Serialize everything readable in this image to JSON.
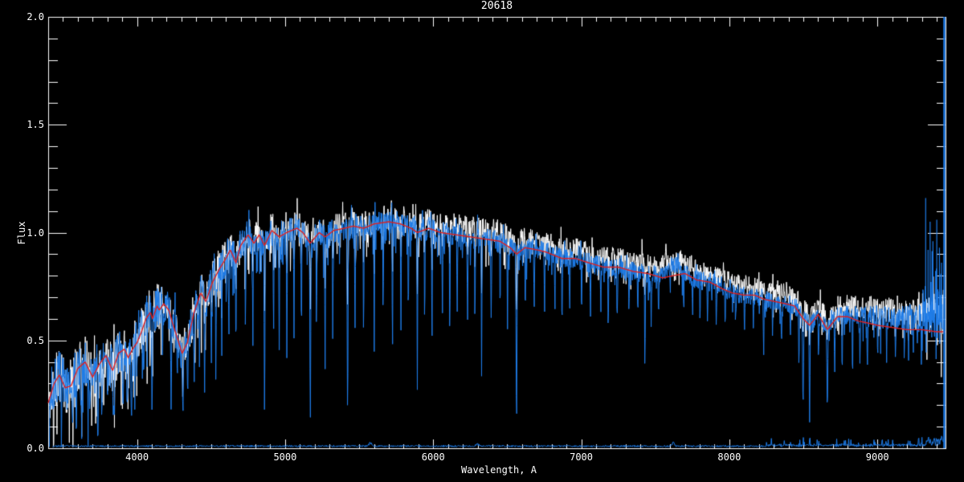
{
  "figure": {
    "background": "#000000"
  },
  "chart_data": {
    "type": "line",
    "title": "20618",
    "xlabel": "Wavelength, A",
    "ylabel": "Flux",
    "xlim": [
      3400,
      9460
    ],
    "ylim": [
      0.0,
      2.0
    ],
    "grid": false,
    "legend": null,
    "axis_color": "#ffffff",
    "x_ticks": [
      {
        "value": 4000,
        "label": "4000"
      },
      {
        "value": 5000,
        "label": "5000"
      },
      {
        "value": 6000,
        "label": "6000"
      },
      {
        "value": 7000,
        "label": "7000"
      },
      {
        "value": 8000,
        "label": "8000"
      },
      {
        "value": 9000,
        "label": "9000"
      }
    ],
    "x_minor_step": 100,
    "y_ticks": [
      {
        "value": 0.0,
        "label": "0.0"
      },
      {
        "value": 0.5,
        "label": "0.5"
      },
      {
        "value": 1.0,
        "label": "1.0"
      },
      {
        "value": 1.5,
        "label": "1.5"
      },
      {
        "value": 2.0,
        "label": "2.0"
      }
    ],
    "y_minor_step": 0.1,
    "series": [
      {
        "name": "observed-spectrum-white",
        "color": "#ffffff",
        "role": "noisy",
        "seed": 11,
        "offset_anchors": [
          [
            3400,
            0.005
          ],
          [
            5000,
            0.01
          ],
          [
            5600,
            0.015
          ],
          [
            6300,
            0.045
          ],
          [
            7600,
            0.05
          ],
          [
            8700,
            0.05
          ],
          [
            9000,
            0.08
          ],
          [
            9460,
            0.09
          ]
        ],
        "down_spike_p": 0.16,
        "line_strength": 0.6,
        "bump_scale": 0.6,
        "noise_scale": 1.05,
        "red_end_boost": false
      },
      {
        "name": "calibrated-spectrum-blue",
        "color": "#1e7ce8",
        "role": "noisy",
        "seed": 7,
        "offset_anchors": [
          [
            3400,
            0
          ],
          [
            8700,
            0
          ],
          [
            9000,
            0.04
          ],
          [
            9460,
            0.06
          ]
        ],
        "down_spike_p": 0.1,
        "line_strength": 1.0,
        "bump_scale": 1.0,
        "noise_scale": 1.0,
        "red_end_boost": true
      },
      {
        "name": "error-spectrum-blue",
        "color": "#1e7ce8",
        "role": "error",
        "seed": 23,
        "base_level": 0.01
      },
      {
        "name": "model-fit-red",
        "color": "#e02020",
        "role": "model",
        "line_width": 1.4
      }
    ],
    "continuum_anchors": [
      [
        3400,
        0.21
      ],
      [
        3440,
        0.3
      ],
      [
        3475,
        0.34
      ],
      [
        3515,
        0.28
      ],
      [
        3555,
        0.29
      ],
      [
        3600,
        0.37
      ],
      [
        3650,
        0.4
      ],
      [
        3700,
        0.33
      ],
      [
        3745,
        0.39
      ],
      [
        3790,
        0.43
      ],
      [
        3835,
        0.36
      ],
      [
        3875,
        0.44
      ],
      [
        3915,
        0.46
      ],
      [
        3940,
        0.42
      ],
      [
        3970,
        0.46
      ],
      [
        4000,
        0.49
      ],
      [
        4030,
        0.54
      ],
      [
        4060,
        0.6
      ],
      [
        4090,
        0.63
      ],
      [
        4105,
        0.6
      ],
      [
        4135,
        0.66
      ],
      [
        4150,
        0.64
      ],
      [
        4180,
        0.67
      ],
      [
        4215,
        0.64
      ],
      [
        4240,
        0.58
      ],
      [
        4305,
        0.44
      ],
      [
        4340,
        0.49
      ],
      [
        4385,
        0.63
      ],
      [
        4430,
        0.72
      ],
      [
        4465,
        0.68
      ],
      [
        4510,
        0.77
      ],
      [
        4555,
        0.83
      ],
      [
        4600,
        0.88
      ],
      [
        4630,
        0.92
      ],
      [
        4668,
        0.86
      ],
      [
        4700,
        0.94
      ],
      [
        4750,
        0.99
      ],
      [
        4790,
        0.95
      ],
      [
        4825,
        0.99
      ],
      [
        4861,
        0.94
      ],
      [
        4910,
        1.01
      ],
      [
        4960,
        0.98
      ],
      [
        5010,
        1.0
      ],
      [
        5080,
        1.02
      ],
      [
        5120,
        1.0
      ],
      [
        5170,
        0.95
      ],
      [
        5230,
        1.0
      ],
      [
        5270,
        0.98
      ],
      [
        5330,
        1.01
      ],
      [
        5400,
        1.02
      ],
      [
        5460,
        1.03
      ],
      [
        5530,
        1.02
      ],
      [
        5600,
        1.04
      ],
      [
        5700,
        1.05
      ],
      [
        5780,
        1.04
      ],
      [
        5850,
        1.02
      ],
      [
        5893,
        1.0
      ],
      [
        5970,
        1.02
      ],
      [
        6050,
        1.0
      ],
      [
        6150,
        0.99
      ],
      [
        6250,
        0.98
      ],
      [
        6350,
        0.97
      ],
      [
        6450,
        0.96
      ],
      [
        6520,
        0.93
      ],
      [
        6563,
        0.9
      ],
      [
        6620,
        0.93
      ],
      [
        6700,
        0.92
      ],
      [
        6760,
        0.91
      ],
      [
        6870,
        0.88
      ],
      [
        6960,
        0.88
      ],
      [
        7050,
        0.86
      ],
      [
        7150,
        0.84
      ],
      [
        7250,
        0.84
      ],
      [
        7350,
        0.82
      ],
      [
        7450,
        0.81
      ],
      [
        7550,
        0.79
      ],
      [
        7620,
        0.8
      ],
      [
        7700,
        0.81
      ],
      [
        7780,
        0.78
      ],
      [
        7870,
        0.77
      ],
      [
        7950,
        0.74
      ],
      [
        8020,
        0.72
      ],
      [
        8100,
        0.71
      ],
      [
        8170,
        0.71
      ],
      [
        8240,
        0.69
      ],
      [
        8310,
        0.68
      ],
      [
        8380,
        0.67
      ],
      [
        8440,
        0.66
      ],
      [
        8500,
        0.6
      ],
      [
        8542,
        0.57
      ],
      [
        8600,
        0.62
      ],
      [
        8662,
        0.55
      ],
      [
        8730,
        0.61
      ],
      [
        8800,
        0.61
      ],
      [
        8870,
        0.59
      ],
      [
        8940,
        0.58
      ],
      [
        9000,
        0.57
      ],
      [
        9100,
        0.56
      ],
      [
        9200,
        0.55
      ],
      [
        9300,
        0.55
      ],
      [
        9400,
        0.54
      ],
      [
        9460,
        0.54
      ]
    ],
    "noise_anchors": [
      [
        3400,
        0.085
      ],
      [
        3800,
        0.08
      ],
      [
        4200,
        0.07
      ],
      [
        4700,
        0.055
      ],
      [
        5200,
        0.045
      ],
      [
        6000,
        0.04
      ],
      [
        6600,
        0.035
      ],
      [
        7300,
        0.032
      ],
      [
        8000,
        0.03
      ],
      [
        8700,
        0.032
      ],
      [
        9100,
        0.04
      ],
      [
        9300,
        0.055
      ],
      [
        9460,
        0.09
      ]
    ],
    "absorption_lines": [
      [
        3565,
        0.08
      ],
      [
        3590,
        0.03
      ],
      [
        3620,
        0.15
      ],
      [
        3680,
        0.18
      ],
      [
        3735,
        0.02
      ],
      [
        3762,
        0.1
      ],
      [
        3800,
        0.2
      ],
      [
        3840,
        0.12
      ],
      [
        3905,
        0.15
      ],
      [
        3935,
        0.18
      ],
      [
        3962,
        0.08
      ],
      [
        4045,
        0.3
      ],
      [
        4101,
        0.15
      ],
      [
        4172,
        0.35
      ],
      [
        4230,
        0.18
      ],
      [
        4272,
        0.28
      ],
      [
        4310,
        0.12
      ],
      [
        4342,
        0.2
      ],
      [
        4386,
        0.28
      ],
      [
        4422,
        0.35
      ],
      [
        4456,
        0.22
      ],
      [
        4502,
        0.38
      ],
      [
        4532,
        0.3
      ],
      [
        4572,
        0.4
      ],
      [
        4620,
        0.45
      ],
      [
        4668,
        0.38
      ],
      [
        4732,
        0.5
      ],
      [
        4782,
        0.42
      ],
      [
        4861,
        0.14
      ],
      [
        4922,
        0.48
      ],
      [
        4960,
        0.4
      ],
      [
        5012,
        0.36
      ],
      [
        5060,
        0.5
      ],
      [
        5110,
        0.45
      ],
      [
        5170,
        0.06
      ],
      [
        5212,
        0.5
      ],
      [
        5270,
        0.32
      ],
      [
        5322,
        0.45
      ],
      [
        5422,
        0.08
      ],
      [
        5472,
        0.5
      ],
      [
        5530,
        0.45
      ],
      [
        5602,
        0.42
      ],
      [
        5662,
        0.55
      ],
      [
        5725,
        0.35
      ],
      [
        5782,
        0.5
      ],
      [
        5832,
        0.55
      ],
      [
        5893,
        0.25
      ],
      [
        5942,
        0.55
      ],
      [
        5992,
        0.45
      ],
      [
        6062,
        0.55
      ],
      [
        6112,
        0.45
      ],
      [
        6162,
        0.6
      ],
      [
        6232,
        0.55
      ],
      [
        6282,
        0.5
      ],
      [
        6327,
        0.3
      ],
      [
        6392,
        0.55
      ],
      [
        6452,
        0.6
      ],
      [
        6502,
        0.55
      ],
      [
        6563,
        0.02
      ],
      [
        6622,
        0.6
      ],
      [
        6682,
        0.62
      ],
      [
        6752,
        0.58
      ],
      [
        6822,
        0.6
      ],
      [
        6870,
        0.52
      ],
      [
        6922,
        0.62
      ],
      [
        7002,
        0.6
      ],
      [
        7062,
        0.58
      ],
      [
        7132,
        0.6
      ],
      [
        7182,
        0.52
      ],
      [
        7242,
        0.55
      ],
      [
        7322,
        0.6
      ],
      [
        7382,
        0.58
      ],
      [
        7430,
        0.28
      ],
      [
        7472,
        0.55
      ],
      [
        7522,
        0.58
      ],
      [
        7692,
        0.58
      ],
      [
        7752,
        0.6
      ],
      [
        7802,
        0.55
      ],
      [
        7852,
        0.58
      ],
      [
        7912,
        0.55
      ],
      [
        7972,
        0.52
      ],
      [
        8042,
        0.55
      ],
      [
        8102,
        0.52
      ],
      [
        8162,
        0.55
      ],
      [
        8232,
        0.42
      ],
      [
        8292,
        0.5
      ],
      [
        8352,
        0.48
      ],
      [
        8412,
        0.5
      ],
      [
        8470,
        0.35
      ],
      [
        8498,
        0.14
      ],
      [
        8542,
        0.11
      ],
      [
        8602,
        0.4
      ],
      [
        8662,
        0.12
      ],
      [
        8712,
        0.35
      ],
      [
        8762,
        0.3
      ],
      [
        8832,
        0.28
      ],
      [
        8882,
        0.38
      ],
      [
        8932,
        0.32
      ],
      [
        9002,
        0.4
      ],
      [
        9062,
        0.38
      ],
      [
        9122,
        0.42
      ],
      [
        9182,
        0.4
      ],
      [
        9242,
        0.42
      ],
      [
        9302,
        0.45
      ]
    ],
    "telluric_bump": {
      "center": 7610,
      "sigma": 55,
      "amp": 0.05
    },
    "sky_bumps": [
      [
        5577,
        0.018
      ],
      [
        6300,
        0.012
      ],
      [
        7620,
        0.018
      ]
    ],
    "edge_spikes": [
      [
        9326,
        1.16
      ],
      [
        9342,
        0.92
      ],
      [
        9356,
        1.05
      ],
      [
        9375,
        0.96
      ],
      [
        9401,
        1.06
      ],
      [
        9419,
        0.93
      ],
      [
        9433,
        0.86
      ]
    ],
    "edge_line": {
      "wavelength": 9452,
      "flux_min": 0.0,
      "flux_max": 2.0
    }
  }
}
